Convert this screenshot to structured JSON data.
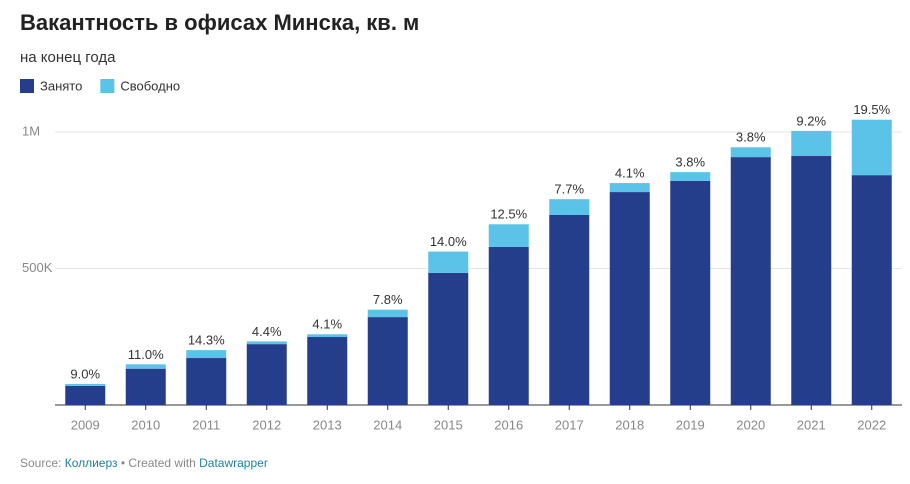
{
  "chart_data": {
    "type": "bar",
    "stacked": true,
    "title": "Вакантность в офисах Минска, кв. м",
    "subtitle": "на конец года",
    "categories": [
      "2009",
      "2010",
      "2011",
      "2012",
      "2013",
      "2014",
      "2015",
      "2016",
      "2017",
      "2018",
      "2019",
      "2020",
      "2021",
      "2022"
    ],
    "series": [
      {
        "name": "Занято",
        "color": "#253e8b",
        "values": [
          70000,
          133000,
          172000,
          223000,
          249000,
          322000,
          484000,
          579000,
          696000,
          780000,
          821000,
          908000,
          912000,
          842000
        ]
      },
      {
        "name": "Свободно",
        "color": "#5cc3e8",
        "values": [
          7000,
          16000,
          29000,
          10000,
          10000,
          27000,
          78000,
          83000,
          58000,
          33000,
          32000,
          36000,
          92000,
          203000
        ]
      }
    ],
    "annotations": [
      "9.0%",
      "11.0%",
      "14.3%",
      "4.4%",
      "4.1%",
      "7.8%",
      "14.0%",
      "12.5%",
      "7.7%",
      "4.1%",
      "3.8%",
      "3.8%",
      "9.2%",
      "19.5%"
    ],
    "ylim": [
      0,
      1100000
    ],
    "yticks": [
      {
        "value": 500000,
        "label": "500K"
      },
      {
        "value": 1000000,
        "label": "1M"
      }
    ],
    "grid": true,
    "legend": "top-left",
    "source": [
      "Source: ",
      "Коллиерз",
      " • Created with ",
      "Datawrapper"
    ]
  }
}
